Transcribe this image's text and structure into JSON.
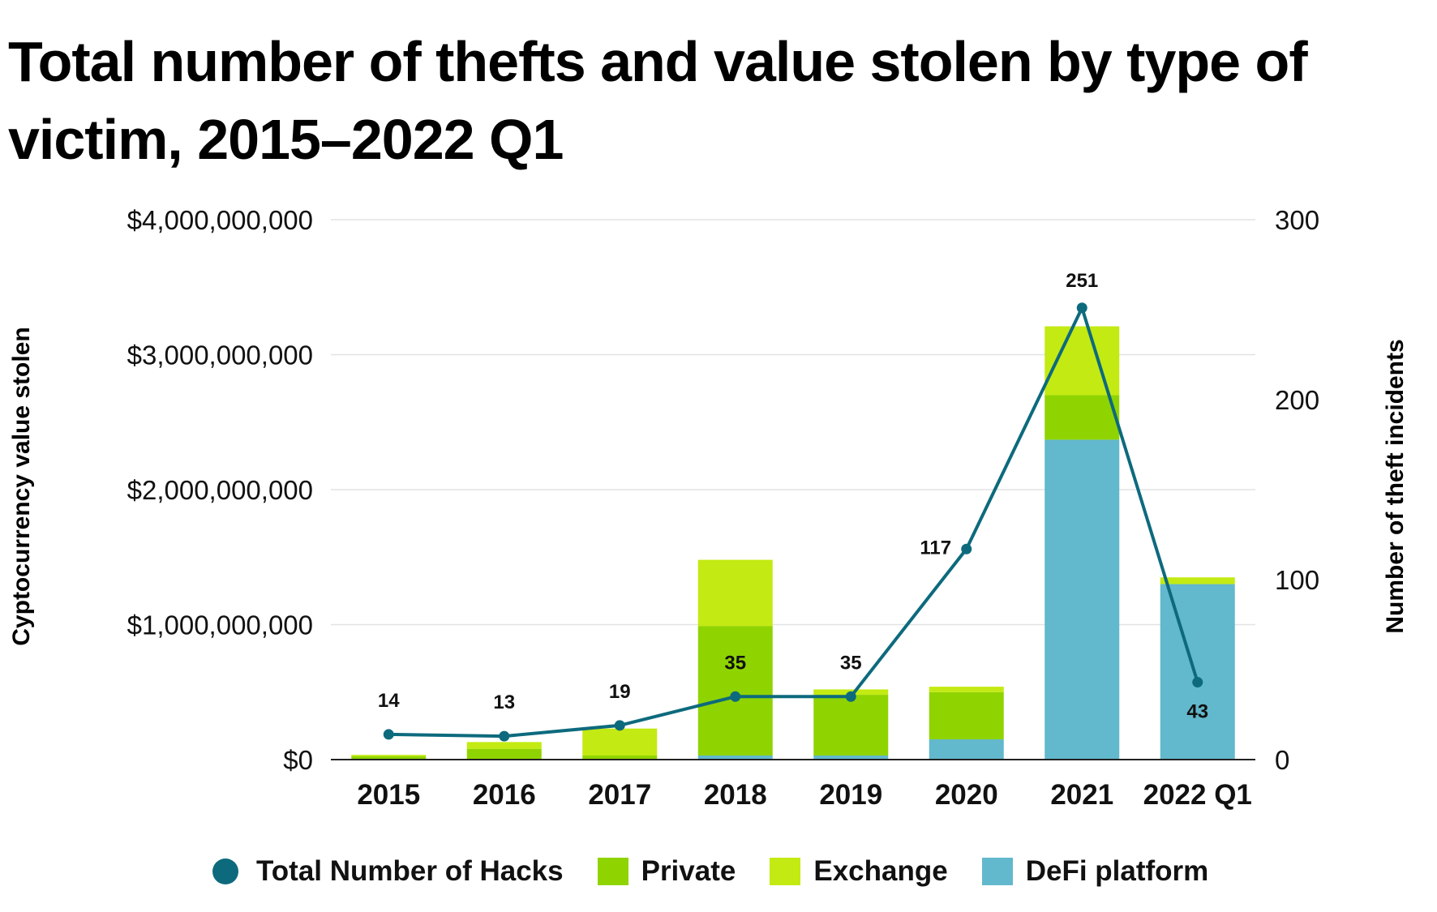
{
  "chart_data": {
    "type": "bar",
    "title": "Total number of thefts and value stolen by type of victim, 2015–2022 Q1",
    "ylabel": "Cyptocurrency value stolen",
    "y2label": "Number of theft incidents",
    "categories": [
      "2015",
      "2016",
      "2017",
      "2018",
      "2019",
      "2020",
      "2021",
      "2022 Q1"
    ],
    "ylim": [
      0,
      4000000000
    ],
    "y2lim": [
      0,
      300
    ],
    "yticks": [
      0,
      1000000000,
      2000000000,
      3000000000,
      4000000000
    ],
    "ytick_labels": [
      "$0",
      "$1,000,000,000",
      "$2,000,000,000",
      "$3,000,000,000",
      "$4,000,000,000"
    ],
    "y2ticks": [
      0,
      100,
      200,
      300
    ],
    "y2tick_labels": [
      "0",
      "100",
      "200",
      "300"
    ],
    "grid": true,
    "legend_position": "bottom",
    "series": [
      {
        "name": "DeFi platform",
        "kind": "bar",
        "axis": "left",
        "color": "#62b8cc",
        "values": [
          0,
          0,
          0,
          30000000,
          30000000,
          150000000,
          2370000000,
          1300000000
        ]
      },
      {
        "name": "Private",
        "kind": "bar",
        "axis": "left",
        "color": "#8fd400",
        "values": [
          25000000,
          80000000,
          30000000,
          960000000,
          450000000,
          350000000,
          330000000,
          0
        ]
      },
      {
        "name": "Exchange",
        "kind": "bar",
        "axis": "left",
        "color": "#c3ea12",
        "values": [
          10000000,
          50000000,
          200000000,
          490000000,
          40000000,
          40000000,
          510000000,
          50000000
        ]
      },
      {
        "name": "Total Number of Hacks",
        "kind": "line",
        "axis": "right",
        "color": "#0d6a7d",
        "values": [
          14,
          13,
          19,
          35,
          35,
          117,
          251,
          43
        ],
        "labels": [
          "14",
          "13",
          "19",
          "35",
          "35",
          "117",
          "251",
          "43"
        ]
      }
    ]
  }
}
